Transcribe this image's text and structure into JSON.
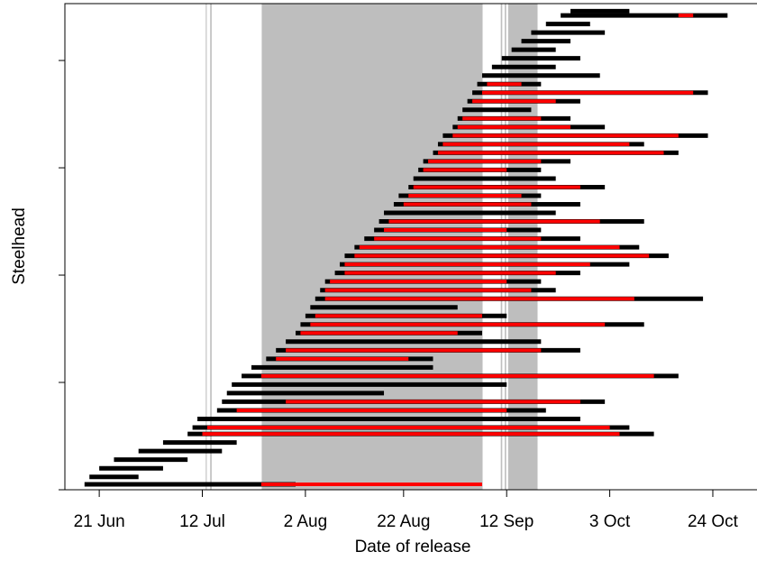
{
  "chart_data": {
    "type": "segments",
    "xlabel": "Date of release",
    "ylabel": "Steelhead",
    "xlim": [
      165,
      306
    ],
    "ylim": [
      0,
      453
    ],
    "xticks": [
      {
        "value": 172,
        "label": "21 Jun"
      },
      {
        "value": 193,
        "label": "12 Jul"
      },
      {
        "value": 214,
        "label": "2 Aug"
      },
      {
        "value": 234,
        "label": "22 Aug"
      },
      {
        "value": 255,
        "label": "12 Sep"
      },
      {
        "value": 276,
        "label": "3 Oct"
      },
      {
        "value": 297,
        "label": "24 Oct"
      }
    ],
    "yticks": [
      0,
      100,
      200,
      300,
      400
    ],
    "show_ytick_labels": false,
    "color": "#000000",
    "highlight_color": "#ff0000",
    "shade_color": "#bebebe",
    "shaded": [
      [
        193.7,
        193.9
      ],
      [
        194.6,
        194.9
      ],
      [
        205.1,
        250.1
      ],
      [
        253.8,
        254.1
      ],
      [
        254.6,
        254.9
      ],
      [
        255.3,
        261.3
      ]
    ],
    "segments": [
      {
        "y": 5,
        "start": 169,
        "end": 212,
        "red_start": 205,
        "red_end": 250
      },
      {
        "y": 12,
        "start": 170,
        "end": 180,
        "red_start": null,
        "red_end": null
      },
      {
        "y": 20,
        "start": 172,
        "end": 185,
        "red_start": null,
        "red_end": null
      },
      {
        "y": 28,
        "start": 175,
        "end": 190,
        "red_start": null,
        "red_end": null
      },
      {
        "y": 36,
        "start": 180,
        "end": 197,
        "red_start": null,
        "red_end": null
      },
      {
        "y": 44,
        "start": 185,
        "end": 200,
        "red_start": null,
        "red_end": null
      },
      {
        "y": 52,
        "start": 190,
        "end": 285,
        "red_start": 193,
        "red_end": 278
      },
      {
        "y": 58,
        "start": 191,
        "end": 280,
        "red_start": 194,
        "red_end": 276
      },
      {
        "y": 66,
        "start": 192,
        "end": 270,
        "red_start": null,
        "red_end": null
      },
      {
        "y": 74,
        "start": 196,
        "end": 263,
        "red_start": 200,
        "red_end": 255
      },
      {
        "y": 82,
        "start": 197,
        "end": 275,
        "red_start": 210,
        "red_end": 270
      },
      {
        "y": 90,
        "start": 198,
        "end": 230,
        "red_start": null,
        "red_end": null
      },
      {
        "y": 98,
        "start": 199,
        "end": 255,
        "red_start": null,
        "red_end": null
      },
      {
        "y": 106,
        "start": 201,
        "end": 290,
        "red_start": 205,
        "red_end": 285
      },
      {
        "y": 114,
        "start": 203,
        "end": 240,
        "red_start": null,
        "red_end": null
      },
      {
        "y": 122,
        "start": 206,
        "end": 240,
        "red_start": 208,
        "red_end": 235
      },
      {
        "y": 130,
        "start": 208,
        "end": 270,
        "red_start": 210,
        "red_end": 262
      },
      {
        "y": 138,
        "start": 210,
        "end": 262,
        "red_start": null,
        "red_end": null
      },
      {
        "y": 146,
        "start": 212,
        "end": 250,
        "red_start": 213,
        "red_end": 245
      },
      {
        "y": 154,
        "start": 213,
        "end": 283,
        "red_start": 215,
        "red_end": 275
      },
      {
        "y": 162,
        "start": 214,
        "end": 255,
        "red_start": 216,
        "red_end": 250
      },
      {
        "y": 170,
        "start": 215,
        "end": 245,
        "red_start": null,
        "red_end": null
      },
      {
        "y": 178,
        "start": 216,
        "end": 295,
        "red_start": 218,
        "red_end": 281
      },
      {
        "y": 186,
        "start": 217,
        "end": 265,
        "red_start": 218,
        "red_end": 260
      },
      {
        "y": 194,
        "start": 218,
        "end": 262,
        "red_start": 219,
        "red_end": 255
      },
      {
        "y": 202,
        "start": 220,
        "end": 270,
        "red_start": 222,
        "red_end": 265
      },
      {
        "y": 210,
        "start": 221,
        "end": 280,
        "red_start": 222,
        "red_end": 272
      },
      {
        "y": 218,
        "start": 222,
        "end": 288,
        "red_start": 224,
        "red_end": 284
      },
      {
        "y": 226,
        "start": 224,
        "end": 282,
        "red_start": 225,
        "red_end": 278
      },
      {
        "y": 234,
        "start": 226,
        "end": 270,
        "red_start": 228,
        "red_end": 262
      },
      {
        "y": 242,
        "start": 228,
        "end": 262,
        "red_start": 230,
        "red_end": 255
      },
      {
        "y": 250,
        "start": 229,
        "end": 283,
        "red_start": 231,
        "red_end": 274
      },
      {
        "y": 258,
        "start": 230,
        "end": 265,
        "red_start": null,
        "red_end": null
      },
      {
        "y": 266,
        "start": 232,
        "end": 270,
        "red_start": 234,
        "red_end": 260
      },
      {
        "y": 274,
        "start": 233,
        "end": 262,
        "red_start": 235,
        "red_end": 258
      },
      {
        "y": 282,
        "start": 235,
        "end": 275,
        "red_start": 236,
        "red_end": 270
      },
      {
        "y": 290,
        "start": 236,
        "end": 265,
        "red_start": null,
        "red_end": null
      },
      {
        "y": 298,
        "start": 237,
        "end": 262,
        "red_start": 238,
        "red_end": 255
      },
      {
        "y": 306,
        "start": 238,
        "end": 268,
        "red_start": 239,
        "red_end": 262
      },
      {
        "y": 314,
        "start": 240,
        "end": 290,
        "red_start": 241,
        "red_end": 287
      },
      {
        "y": 322,
        "start": 241,
        "end": 283,
        "red_start": 242,
        "red_end": 280
      },
      {
        "y": 330,
        "start": 242,
        "end": 296,
        "red_start": 244,
        "red_end": 290
      },
      {
        "y": 338,
        "start": 244,
        "end": 275,
        "red_start": 245,
        "red_end": 268
      },
      {
        "y": 346,
        "start": 245,
        "end": 268,
        "red_start": 246,
        "red_end": 262
      },
      {
        "y": 354,
        "start": 246,
        "end": 260,
        "red_start": null,
        "red_end": null
      },
      {
        "y": 362,
        "start": 247,
        "end": 270,
        "red_start": 248,
        "red_end": 265
      },
      {
        "y": 370,
        "start": 248,
        "end": 296,
        "red_start": 250,
        "red_end": 293
      },
      {
        "y": 378,
        "start": 249,
        "end": 262,
        "red_start": 251,
        "red_end": 258
      },
      {
        "y": 386,
        "start": 250,
        "end": 274,
        "red_start": null,
        "red_end": null
      },
      {
        "y": 394,
        "start": 252,
        "end": 265,
        "red_start": null,
        "red_end": null
      },
      {
        "y": 402,
        "start": 254,
        "end": 270,
        "red_start": null,
        "red_end": null
      },
      {
        "y": 410,
        "start": 256,
        "end": 265,
        "red_start": null,
        "red_end": null
      },
      {
        "y": 418,
        "start": 258,
        "end": 268,
        "red_start": null,
        "red_end": null
      },
      {
        "y": 426,
        "start": 260,
        "end": 275,
        "red_start": null,
        "red_end": null
      },
      {
        "y": 434,
        "start": 263,
        "end": 272,
        "red_start": null,
        "red_end": null
      },
      {
        "y": 442,
        "start": 266,
        "end": 300,
        "red_start": 290,
        "red_end": 293
      },
      {
        "y": 446,
        "start": 268,
        "end": 280,
        "red_start": null,
        "red_end": null
      }
    ]
  }
}
